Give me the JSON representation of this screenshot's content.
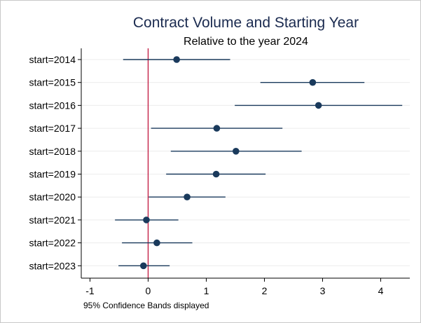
{
  "chart_data": {
    "type": "scatter",
    "title": "Contract Volume and Starting Year",
    "subtitle": "Relative to the year 2024",
    "note": "95% Confidence Bands displayed",
    "xlabel": "",
    "ylabel": "",
    "xlim": [
      -1.15,
      4.5
    ],
    "xticks": [
      -1,
      0,
      1,
      2,
      3,
      4
    ],
    "reference_line_x": 0,
    "grid": true,
    "categories": [
      "start=2014",
      "start=2015",
      "start=2016",
      "start=2017",
      "start=2018",
      "start=2019",
      "start=2020",
      "start=2021",
      "start=2022",
      "start=2023"
    ],
    "estimates": [
      0.49,
      2.83,
      2.93,
      1.18,
      1.51,
      1.17,
      0.67,
      -0.03,
      0.15,
      -0.08
    ],
    "ci_low": [
      -0.43,
      1.93,
      1.49,
      0.05,
      0.39,
      0.31,
      0.01,
      -0.57,
      -0.45,
      -0.51
    ],
    "ci_high": [
      1.41,
      3.72,
      4.37,
      2.31,
      2.64,
      2.02,
      1.33,
      0.52,
      0.76,
      0.37
    ],
    "colors": {
      "marker": "#1a3a5c",
      "ci_line": "#1a3a5c",
      "reference_line": "#c0143c",
      "grid": "#ececec",
      "axis": "#000000",
      "title": "#1a2a4f"
    }
  }
}
